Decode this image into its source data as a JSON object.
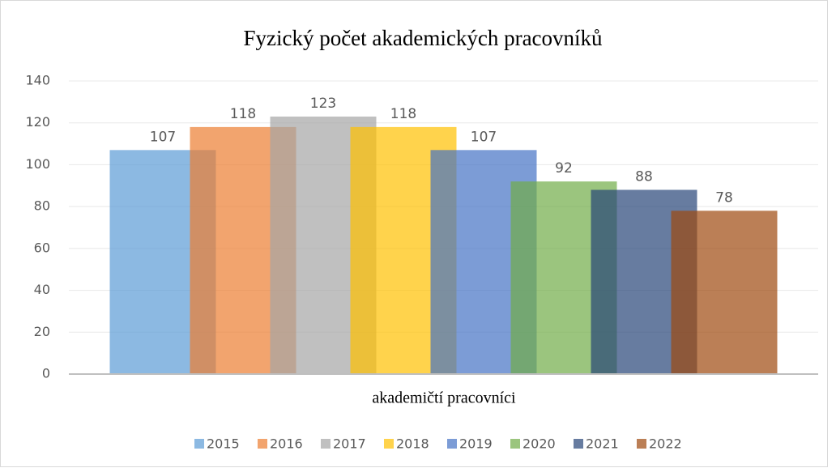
{
  "chart_data": {
    "type": "bar",
    "title": "Fyzický počet akademických pracovníků",
    "categories": [
      "akademičtí pracovníci"
    ],
    "series": [
      {
        "name": "2015",
        "color": "#5b9bd5",
        "values": [
          107
        ]
      },
      {
        "name": "2016",
        "color": "#ed7d31",
        "values": [
          118
        ]
      },
      {
        "name": "2017",
        "color": "#a5a5a5",
        "values": [
          123
        ]
      },
      {
        "name": "2018",
        "color": "#ffc000",
        "values": [
          118
        ]
      },
      {
        "name": "2019",
        "color": "#4472c4",
        "values": [
          107
        ]
      },
      {
        "name": "2020",
        "color": "#70ad47",
        "values": [
          92
        ]
      },
      {
        "name": "2021",
        "color": "#264478",
        "values": [
          88
        ]
      },
      {
        "name": "2022",
        "color": "#9e480e",
        "values": [
          78
        ]
      }
    ],
    "ylim": [
      0,
      140
    ],
    "yticks": [
      0,
      20,
      40,
      60,
      80,
      100,
      120,
      140
    ],
    "grid": true,
    "legend": "bottom"
  }
}
